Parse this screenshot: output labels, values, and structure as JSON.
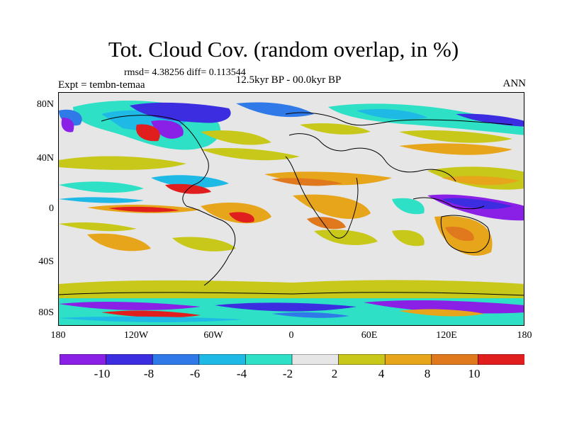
{
  "title": "Tot. Cloud Cov. (random overlap, in %)",
  "stats": "rmsd= 4.38256 diff= 0.113544",
  "expt": "Expt = tembn-temaa",
  "period": "12.5kyr BP - 00.0kyr BP",
  "season": "ANN",
  "y_ticks": [
    "80N",
    "40N",
    "0",
    "40S",
    "80S"
  ],
  "x_ticks": [
    "180",
    "120W",
    "60W",
    "0",
    "60E",
    "120E",
    "180"
  ],
  "colorbar": {
    "labels": [
      "-10",
      "-8",
      "-6",
      "-4",
      "-2",
      "2",
      "4",
      "8",
      "10"
    ],
    "colors": [
      "#8a1fe6",
      "#3c2ee0",
      "#2f7ae8",
      "#1fb9e6",
      "#2de0c6",
      "#e6e6e6",
      "#c8c81a",
      "#e6a51a",
      "#e0781e",
      "#e01e1e"
    ]
  }
}
